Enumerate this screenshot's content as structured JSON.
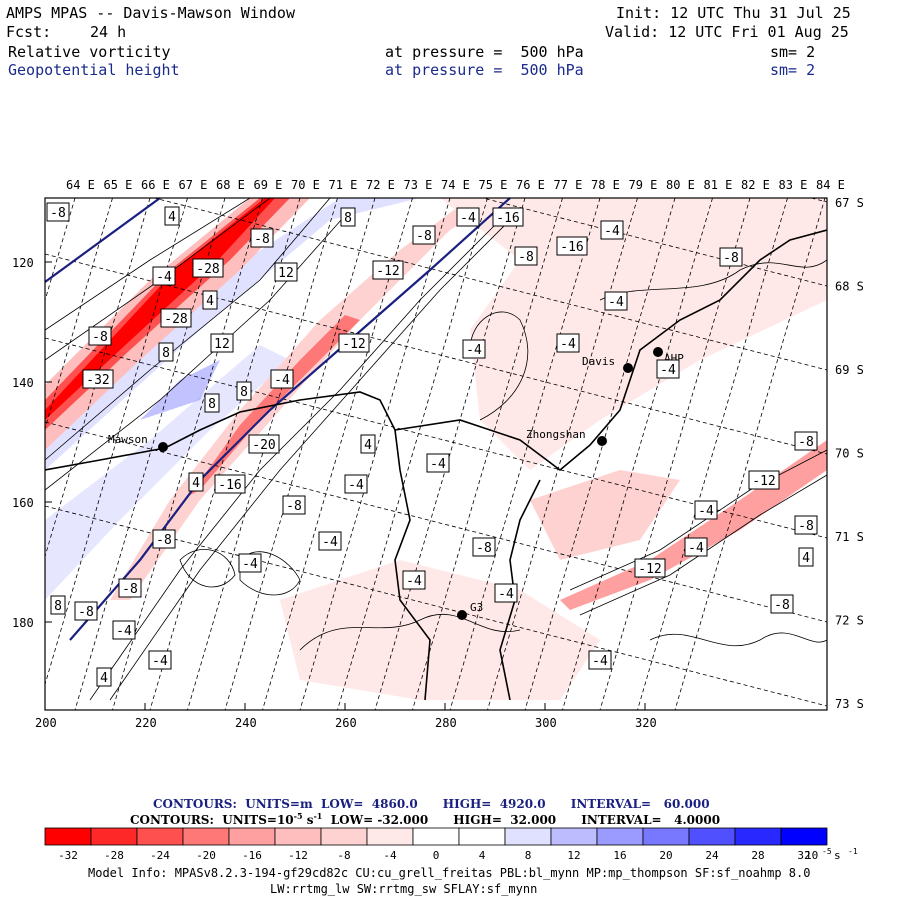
{
  "header": {
    "title": "AMPS MPAS -- Davis-Mawson Window",
    "init": "Init: 12 UTC Thu 31 Jul 25",
    "fcst_label": "Fcst:",
    "fcst_value": "24 h",
    "valid": "Valid: 12 UTC Fri 01 Aug 25",
    "field1": {
      "name": "Relative vorticity",
      "pressure": "at pressure =  500 hPa",
      "sm": "sm= 2"
    },
    "field2": {
      "name": "Geopotential height",
      "pressure": "at pressure =  500 hPa",
      "sm": "sm= 2"
    }
  },
  "axes": {
    "top_lon": [
      "64 E",
      "65 E",
      "66 E",
      "67 E",
      "68 E",
      "69 E",
      "70 E",
      "71 E",
      "72 E",
      "73 E",
      "74 E",
      "75 E",
      "76 E",
      "77 E",
      "78 E",
      "79 E",
      "80 E",
      "81 E",
      "82 E",
      "83 E",
      "84 E"
    ],
    "right_lat": [
      "67 S",
      "68 S",
      "69 S",
      "70 S",
      "71 S",
      "72 S",
      "73 S"
    ],
    "left_y": [
      "120",
      "140",
      "160",
      "180"
    ],
    "bottom_x": [
      "200",
      "220",
      "240",
      "260",
      "280",
      "300",
      "320"
    ]
  },
  "stations": [
    {
      "name": "Mawson"
    },
    {
      "name": "Davis"
    },
    {
      "name": "Zhongshan"
    },
    {
      "name": "G3"
    },
    {
      "name": "AHP"
    }
  ],
  "contour_labels": [
    "-8",
    "4",
    "8",
    "-4",
    "-16",
    "-8",
    "-8",
    "-4",
    "-8",
    "-16",
    "12",
    "-28",
    "-12",
    "-4",
    "-8",
    "4",
    "-4",
    "-28",
    "12",
    "8",
    "-8",
    "-4",
    "-12",
    "-4",
    "-32",
    "-4",
    "8",
    "8",
    "-4",
    "4",
    "-20",
    "-4",
    "-16",
    "4",
    "-8",
    "-4",
    "-4",
    "-12",
    "-8",
    "-4",
    "-8",
    "-8",
    "-12",
    "-4",
    "-8",
    "4",
    "8",
    "-8",
    "-4",
    "-4",
    "-8",
    "-4",
    "-4",
    "-4",
    "-8",
    "-4",
    "4"
  ],
  "legend": {
    "contours_line1": "CONTOURS:  UNITS=m  LOW=  4860.0      HIGH=  4920.0      INTERVAL=   60.000",
    "contours_line2": "CONTOURS:  UNITS=10",
    "contours_line2_exp": "-5",
    "contours_line2_rest": " s",
    "contours_line2_exp2": "-1",
    "contours_line2_tail": "  LOW= -32.000      HIGH=  32.000      INTERVAL=   4.0000",
    "colorbar_ticks": [
      "-32",
      "-28",
      "-24",
      "-20",
      "-16",
      "-12",
      "-8",
      "-4",
      "0",
      "4",
      "8",
      "12",
      "16",
      "20",
      "24",
      "28",
      "32"
    ],
    "colorbar_units": "10",
    "colorbar_units_exp": "-5",
    "colorbar_units_tail": " s",
    "colorbar_units_exp2": "-1",
    "colors": [
      "#ff0000",
      "#ff2828",
      "#ff5050",
      "#ff7878",
      "#ffa0a0",
      "#ffbebe",
      "#ffd2d2",
      "#ffe8e8",
      "#ffffff",
      "#ffffff",
      "#e0e0ff",
      "#bcbcff",
      "#9a9aff",
      "#7878ff",
      "#5050ff",
      "#2828ff",
      "#0000ff"
    ]
  },
  "model_info": {
    "line1": "Model Info: MPASv8.2.3-194-gf29cd82c CU:cu_grell_freitas PBL:bl_mynn MP:mp_thompson SF:sf_noahmp 8.0",
    "line2": "LW:rrtmg_lw SW:rrtmg_sw SFLAY:sf_mynn"
  }
}
